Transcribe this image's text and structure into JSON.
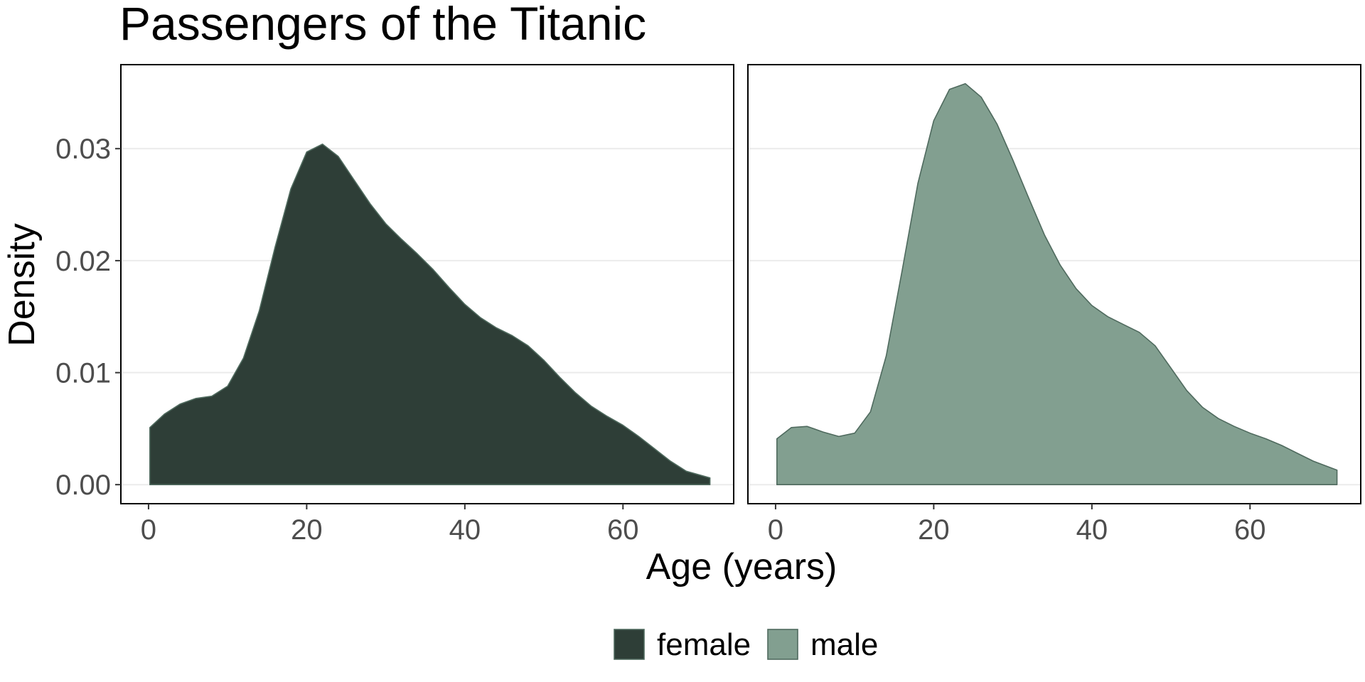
{
  "chart_data": {
    "type": "area",
    "title": "Passengers of the Titanic",
    "xlabel": "Age (years)",
    "ylabel": "Density",
    "xlim": [
      -3.5,
      74
    ],
    "ylim": [
      -0.0017,
      0.0375
    ],
    "x_ticks": [
      0,
      20,
      40,
      60
    ],
    "x_tick_labels": [
      "0",
      "20",
      "40",
      "60"
    ],
    "y_ticks": [
      0,
      0.01,
      0.02,
      0.03
    ],
    "y_tick_labels": [
      "0.00",
      "0.01",
      "0.02",
      "0.03"
    ],
    "grid": true,
    "facets": [
      "female",
      "male"
    ],
    "legend_position": "bottom",
    "colors": {
      "female": "#2e3e37",
      "male": "#829f90",
      "female_edge": "#4f6a5e",
      "male_edge": "#4f6a5e"
    },
    "series": [
      {
        "name": "female",
        "x": [
          0.17,
          2,
          4,
          6,
          8,
          10,
          12,
          14,
          16,
          18,
          20,
          22,
          24,
          26,
          28,
          30,
          32,
          34,
          36,
          38,
          40,
          42,
          44,
          46,
          48,
          50,
          52,
          54,
          56,
          58,
          60,
          62,
          64,
          66,
          68,
          71
        ],
        "values": [
          0.0051,
          0.0063,
          0.0072,
          0.0077,
          0.0079,
          0.0088,
          0.0113,
          0.0155,
          0.0212,
          0.0264,
          0.0297,
          0.0304,
          0.0293,
          0.0272,
          0.0251,
          0.0233,
          0.0219,
          0.0206,
          0.0192,
          0.0176,
          0.0161,
          0.0149,
          0.014,
          0.0133,
          0.0124,
          0.0111,
          0.0096,
          0.0082,
          0.007,
          0.0061,
          0.0053,
          0.0043,
          0.0032,
          0.0021,
          0.0012,
          0.0006
        ]
      },
      {
        "name": "male",
        "x": [
          0.17,
          2,
          4,
          6,
          8,
          10,
          12,
          14,
          16,
          18,
          20,
          22,
          24,
          26,
          28,
          30,
          32,
          34,
          36,
          38,
          40,
          42,
          44,
          46,
          48,
          50,
          52,
          54,
          56,
          58,
          60,
          62,
          64,
          66,
          68,
          71
        ],
        "values": [
          0.0041,
          0.0051,
          0.0052,
          0.0047,
          0.0043,
          0.0046,
          0.0065,
          0.0115,
          0.0191,
          0.0269,
          0.0325,
          0.0353,
          0.0358,
          0.0346,
          0.0322,
          0.029,
          0.0256,
          0.0223,
          0.0196,
          0.0175,
          0.016,
          0.015,
          0.0143,
          0.0136,
          0.0124,
          0.0104,
          0.0084,
          0.0069,
          0.0059,
          0.0052,
          0.0046,
          0.0041,
          0.0035,
          0.0028,
          0.0021,
          0.0013
        ]
      }
    ]
  }
}
